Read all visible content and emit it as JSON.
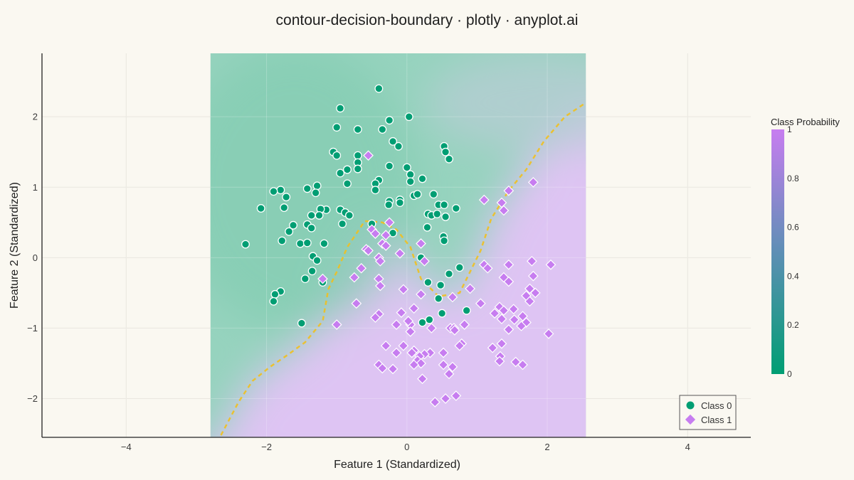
{
  "title": "contour-decision-boundary · plotly · anyplot.ai",
  "colors": {
    "background": "#FAF8F1",
    "class0": "#009E73",
    "class1": "#C77DF0",
    "boundary": "#F0C020",
    "colorscale_low": "#009E73",
    "colorscale_high": "#C77DF0"
  },
  "chart_data": {
    "type": "scatter",
    "title": "contour-decision-boundary · plotly · anyplot.ai",
    "xlabel": "Feature 1 (Standardized)",
    "ylabel": "Feature 2 (Standardized)",
    "xlim": [
      -5.2,
      4.9
    ],
    "ylim": [
      -2.55,
      2.9
    ],
    "xticks": [
      -4,
      -2,
      0,
      2,
      4
    ],
    "yticks": [
      -2,
      -1,
      0,
      1,
      2
    ],
    "grid": true,
    "legend_position": "bottom-right",
    "contour_region": {
      "x": [
        -2.8,
        2.55
      ],
      "y": [
        -2.55,
        2.9
      ]
    },
    "colorbar": {
      "title": "Class Probability",
      "ticks": [
        0,
        0.2,
        0.4,
        0.6,
        0.8,
        1
      ],
      "range": [
        0,
        1
      ]
    },
    "decision_boundary": [
      [
        -2.65,
        -2.52
      ],
      [
        -2.4,
        -2.05
      ],
      [
        -2.2,
        -1.75
      ],
      [
        -1.95,
        -1.55
      ],
      [
        -1.7,
        -1.38
      ],
      [
        -1.45,
        -1.2
      ],
      [
        -1.2,
        -0.9
      ],
      [
        -1.12,
        -0.45
      ],
      [
        -1.0,
        -0.2
      ],
      [
        -0.85,
        0.15
      ],
      [
        -0.6,
        0.52
      ],
      [
        -0.35,
        0.5
      ],
      [
        -0.15,
        0.4
      ],
      [
        0.05,
        0.15
      ],
      [
        0.2,
        -0.3
      ],
      [
        0.45,
        -0.55
      ],
      [
        0.75,
        -0.5
      ],
      [
        0.95,
        -0.1
      ],
      [
        1.05,
        0.1
      ],
      [
        1.2,
        0.55
      ],
      [
        1.45,
        0.95
      ],
      [
        1.7,
        1.25
      ],
      [
        1.95,
        1.65
      ],
      [
        2.25,
        2.0
      ],
      [
        2.55,
        2.2
      ]
    ],
    "series": [
      {
        "name": "Class 0",
        "marker": "circle",
        "points": [
          [
            -0.4,
            2.4
          ],
          [
            -0.95,
            2.12
          ],
          [
            0.03,
            2.0
          ],
          [
            -0.25,
            1.95
          ],
          [
            -1.0,
            1.85
          ],
          [
            -0.7,
            1.82
          ],
          [
            -0.35,
            1.82
          ],
          [
            -0.2,
            1.65
          ],
          [
            -0.12,
            1.58
          ],
          [
            0.53,
            1.58
          ],
          [
            0.55,
            1.5
          ],
          [
            -1.05,
            1.5
          ],
          [
            -1.0,
            1.45
          ],
          [
            -0.7,
            1.45
          ],
          [
            0.6,
            1.4
          ],
          [
            -0.7,
            1.35
          ],
          [
            -0.7,
            1.26
          ],
          [
            -0.25,
            1.3
          ],
          [
            0.0,
            1.28
          ],
          [
            0.05,
            1.18
          ],
          [
            -0.85,
            1.25
          ],
          [
            -0.95,
            1.2
          ],
          [
            0.22,
            1.12
          ],
          [
            -0.4,
            1.1
          ],
          [
            -0.45,
            1.05
          ],
          [
            -0.85,
            1.05
          ],
          [
            0.05,
            1.08
          ],
          [
            -1.28,
            1.02
          ],
          [
            -1.42,
            0.98
          ],
          [
            -1.8,
            0.96
          ],
          [
            -1.9,
            0.94
          ],
          [
            -0.45,
            0.96
          ],
          [
            0.1,
            0.88
          ],
          [
            0.15,
            0.9
          ],
          [
            0.38,
            0.9
          ],
          [
            -1.3,
            0.92
          ],
          [
            -1.72,
            0.86
          ],
          [
            -0.1,
            0.82
          ],
          [
            -0.25,
            0.8
          ],
          [
            -0.1,
            0.78
          ],
          [
            -0.26,
            0.75
          ],
          [
            0.45,
            0.75
          ],
          [
            0.53,
            0.75
          ],
          [
            0.7,
            0.7
          ],
          [
            -2.08,
            0.7
          ],
          [
            -1.75,
            0.71
          ],
          [
            -1.15,
            0.68
          ],
          [
            -1.23,
            0.69
          ],
          [
            -0.95,
            0.68
          ],
          [
            -0.88,
            0.64
          ],
          [
            -1.36,
            0.6
          ],
          [
            -1.25,
            0.6
          ],
          [
            -0.82,
            0.6
          ],
          [
            0.3,
            0.62
          ],
          [
            0.35,
            0.6
          ],
          [
            0.43,
            0.62
          ],
          [
            0.55,
            0.58
          ],
          [
            -0.5,
            0.48
          ],
          [
            -1.62,
            0.46
          ],
          [
            -1.42,
            0.47
          ],
          [
            -0.92,
            0.48
          ],
          [
            -1.36,
            0.42
          ],
          [
            0.29,
            0.43
          ],
          [
            -1.68,
            0.37
          ],
          [
            -0.2,
            0.35
          ],
          [
            0.52,
            0.3
          ],
          [
            -1.78,
            0.24
          ],
          [
            -1.52,
            0.2
          ],
          [
            -1.42,
            0.21
          ],
          [
            -1.18,
            0.2
          ],
          [
            0.53,
            0.24
          ],
          [
            -2.3,
            0.19
          ],
          [
            -1.34,
            0.02
          ],
          [
            -1.28,
            -0.04
          ],
          [
            0.2,
            0.0
          ],
          [
            0.75,
            -0.14
          ],
          [
            0.6,
            -0.23
          ],
          [
            -1.35,
            -0.19
          ],
          [
            -1.45,
            -0.3
          ],
          [
            -1.2,
            -0.35
          ],
          [
            0.3,
            -0.35
          ],
          [
            0.48,
            -0.39
          ],
          [
            -1.8,
            -0.48
          ],
          [
            -1.88,
            -0.52
          ],
          [
            -1.9,
            -0.62
          ],
          [
            0.45,
            -0.58
          ],
          [
            0.85,
            -0.75
          ],
          [
            0.5,
            -0.79
          ],
          [
            0.32,
            -0.88
          ],
          [
            -1.5,
            -0.93
          ],
          [
            0.22,
            -0.92
          ]
        ]
      },
      {
        "name": "Class 1",
        "marker": "diamond",
        "points": [
          [
            -0.55,
            1.45
          ],
          [
            1.8,
            1.07
          ],
          [
            1.45,
            0.95
          ],
          [
            1.1,
            0.82
          ],
          [
            1.35,
            0.78
          ],
          [
            1.38,
            0.67
          ],
          [
            -0.5,
            0.4
          ],
          [
            -0.45,
            0.34
          ],
          [
            -0.25,
            0.5
          ],
          [
            -0.3,
            0.32
          ],
          [
            -0.35,
            0.2
          ],
          [
            0.2,
            0.2
          ],
          [
            -0.3,
            0.17
          ],
          [
            -0.58,
            0.12
          ],
          [
            -0.55,
            0.1
          ],
          [
            -0.4,
            0.0
          ],
          [
            -0.1,
            0.06
          ],
          [
            0.25,
            -0.05
          ],
          [
            -0.38,
            -0.05
          ],
          [
            -0.65,
            -0.15
          ],
          [
            1.78,
            -0.05
          ],
          [
            2.05,
            -0.1
          ],
          [
            1.1,
            -0.1
          ],
          [
            1.15,
            -0.15
          ],
          [
            1.45,
            -0.1
          ],
          [
            -0.75,
            -0.28
          ],
          [
            1.38,
            -0.28
          ],
          [
            1.8,
            -0.26
          ],
          [
            -0.4,
            -0.3
          ],
          [
            1.45,
            -0.34
          ],
          [
            -1.2,
            -0.3
          ],
          [
            -0.38,
            -0.4
          ],
          [
            0.9,
            -0.44
          ],
          [
            1.75,
            -0.44
          ],
          [
            -0.05,
            -0.45
          ],
          [
            1.83,
            -0.5
          ],
          [
            1.7,
            -0.54
          ],
          [
            0.2,
            -0.52
          ],
          [
            0.65,
            -0.56
          ],
          [
            1.05,
            -0.65
          ],
          [
            1.75,
            -0.62
          ],
          [
            -0.72,
            -0.65
          ],
          [
            1.32,
            -0.7
          ],
          [
            0.1,
            -0.72
          ],
          [
            1.52,
            -0.73
          ],
          [
            1.38,
            -0.75
          ],
          [
            -0.4,
            -0.8
          ],
          [
            1.25,
            -0.79
          ],
          [
            -0.08,
            -0.78
          ],
          [
            1.35,
            -0.87
          ],
          [
            1.65,
            -0.83
          ],
          [
            1.53,
            -0.88
          ],
          [
            -0.45,
            -0.85
          ],
          [
            1.7,
            -0.92
          ],
          [
            -0.15,
            -0.95
          ],
          [
            -1.0,
            -0.95
          ],
          [
            0.05,
            -0.95
          ],
          [
            0.02,
            -0.9
          ],
          [
            0.82,
            -0.95
          ],
          [
            0.35,
            -1.0
          ],
          [
            0.62,
            -1.0
          ],
          [
            0.67,
            -1.0
          ],
          [
            0.05,
            -1.05
          ],
          [
            0.68,
            -1.03
          ],
          [
            1.45,
            -1.02
          ],
          [
            1.63,
            -0.97
          ],
          [
            2.02,
            -1.08
          ],
          [
            0.78,
            -1.22
          ],
          [
            0.75,
            -1.25
          ],
          [
            -0.3,
            -1.25
          ],
          [
            1.35,
            -1.22
          ],
          [
            -0.05,
            -1.25
          ],
          [
            1.22,
            -1.28
          ],
          [
            0.1,
            -1.32
          ],
          [
            -0.15,
            -1.35
          ],
          [
            0.33,
            -1.35
          ],
          [
            0.07,
            -1.35
          ],
          [
            0.52,
            -1.35
          ],
          [
            0.25,
            -1.37
          ],
          [
            0.18,
            -1.4
          ],
          [
            1.33,
            -1.4
          ],
          [
            1.32,
            -1.47
          ],
          [
            0.15,
            -1.46
          ],
          [
            0.2,
            -1.5
          ],
          [
            0.52,
            -1.52
          ],
          [
            -0.4,
            -1.52
          ],
          [
            0.1,
            -1.52
          ],
          [
            0.65,
            -1.55
          ],
          [
            1.55,
            -1.48
          ],
          [
            1.65,
            -1.52
          ],
          [
            -0.35,
            -1.57
          ],
          [
            -0.2,
            -1.58
          ],
          [
            0.6,
            -1.65
          ],
          [
            0.22,
            -1.72
          ],
          [
            0.7,
            -1.96
          ],
          [
            0.55,
            -2.0
          ],
          [
            0.4,
            -2.05
          ]
        ]
      }
    ]
  },
  "legend": {
    "items": [
      "Class 0",
      "Class 1"
    ]
  }
}
